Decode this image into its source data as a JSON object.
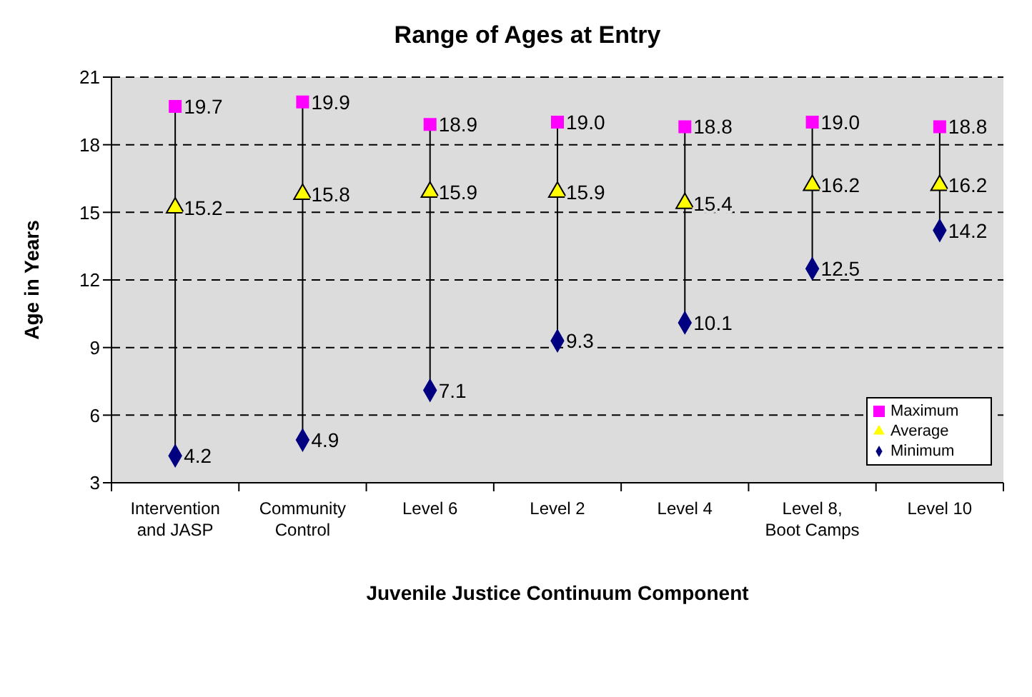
{
  "chart_data": {
    "type": "scatter",
    "title": "Range of Ages at Entry",
    "xlabel": "Juvenile Justice Continuum Component",
    "ylabel": "Age in Years",
    "categories": [
      "Intervention and JASP",
      "Community Control",
      "Level 6",
      "Level 2",
      "Level 4",
      "Level 8, Boot Camps",
      "Level 10"
    ],
    "series": [
      {
        "name": "Maximum",
        "color": "#ff00ff",
        "marker": "square",
        "values": [
          19.7,
          19.9,
          18.9,
          19.0,
          18.8,
          19.0,
          18.8
        ],
        "value_labels": [
          "19.7",
          "19.9",
          "18.9",
          "19.0",
          "18.8",
          "19.0",
          "18.8"
        ]
      },
      {
        "name": "Average",
        "color": "#ffff00",
        "marker": "triangle",
        "values": [
          15.2,
          15.8,
          15.9,
          15.9,
          15.4,
          16.2,
          16.2
        ],
        "value_labels": [
          "15.2",
          "15.8",
          "15.9",
          "15.9",
          "15.4",
          "16.2",
          "16.2"
        ]
      },
      {
        "name": "Minimum",
        "color": "#000080",
        "marker": "diamond",
        "values": [
          4.2,
          4.9,
          7.1,
          9.3,
          10.1,
          12.5,
          14.2
        ],
        "value_labels": [
          "4.2",
          "4.9",
          "7.1",
          "9.3",
          "10.1",
          "12.5",
          "14.2"
        ]
      }
    ],
    "ylim": [
      3,
      21
    ],
    "yticks": [
      3,
      6,
      9,
      12,
      15,
      18,
      21
    ],
    "grid": "y",
    "legend": "bottom right"
  }
}
